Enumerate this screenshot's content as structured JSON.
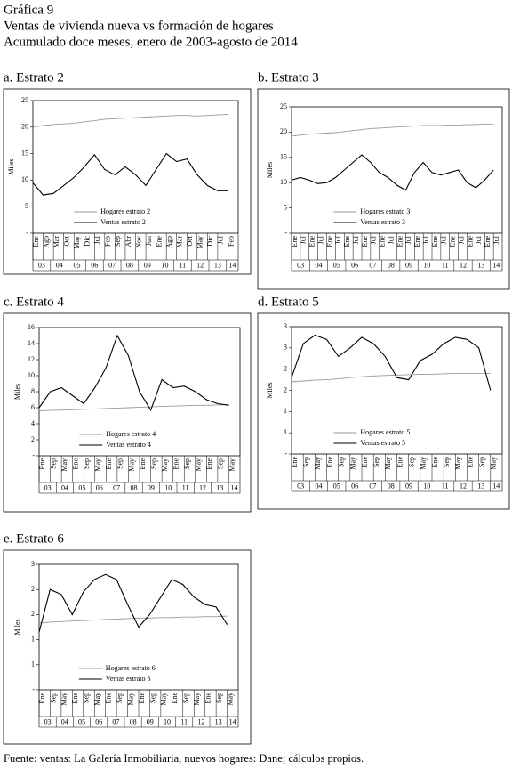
{
  "header": {
    "label": "Gráfica 9",
    "title": "Ventas de vivienda nueva vs formación de hogares",
    "subtitle": "Acumulado doce meses, enero de 2003-agosto de 2014"
  },
  "chart_data": [
    {
      "type": "line",
      "title": "a. Estrato 2",
      "ylabel": "Miles",
      "categories": [
        "Ene",
        "Ago",
        "Mar",
        "Oct",
        "May",
        "Dic",
        "Jul",
        "Feb",
        "Sep",
        "Abr",
        "Nov",
        "Jun",
        "Ene",
        "Ago",
        "Mar",
        "Oct",
        "May",
        "Dic",
        "Jul",
        "Feb"
      ],
      "year_labels": [
        "03",
        "04",
        "05",
        "06",
        "07",
        "08",
        "09",
        "10",
        "11",
        "12",
        "13",
        "14"
      ],
      "ylim": [
        0,
        25
      ],
      "yticks": [
        {
          "value": 0,
          "label": "-"
        },
        5,
        10,
        15,
        20,
        25
      ],
      "legend": "lower center",
      "series": [
        {
          "name": "Hogares estrato 2",
          "color": "#999999",
          "values": [
            20,
            20.3,
            20.5,
            20.6,
            20.7,
            21,
            21.2,
            21.5,
            21.6,
            21.7,
            21.8,
            21.9,
            22,
            22.1,
            22.2,
            22.2,
            22.1,
            22.2,
            22.3,
            22.4
          ]
        },
        {
          "name": "Ventas estrato 2",
          "color": "#000000",
          "values": [
            9.5,
            7.2,
            7.5,
            9,
            10.5,
            12.5,
            14.8,
            12,
            11,
            12.5,
            11,
            9,
            12,
            15,
            13.5,
            14,
            11,
            9,
            8,
            8
          ]
        }
      ]
    },
    {
      "type": "line",
      "title": "b. Estrato 3",
      "ylabel": "Miles",
      "categories": [
        "Ene",
        "Jul",
        "Ene",
        "Jul",
        "Ene",
        "Jul",
        "Ene",
        "Jul",
        "Ene",
        "Jul",
        "Ene",
        "Jul",
        "Ene",
        "Jul",
        "Ene",
        "Jul",
        "Ene",
        "Jul",
        "Ene",
        "Jul",
        "Ene",
        "Jul",
        "Ene",
        "Jul"
      ],
      "year_labels": [
        "03",
        "04",
        "05",
        "06",
        "07",
        "08",
        "09",
        "10",
        "11",
        "12",
        "13",
        "14"
      ],
      "ylim": [
        0,
        25
      ],
      "yticks": [
        {
          "value": 0,
          "label": "-"
        },
        5,
        10,
        15,
        20,
        25
      ],
      "legend": "lower center",
      "series": [
        {
          "name": "Hogares estrato 3",
          "color": "#999999",
          "values": [
            19.2,
            19.4,
            19.6,
            19.7,
            19.8,
            19.9,
            20.1,
            20.3,
            20.5,
            20.7,
            20.8,
            20.9,
            21,
            21.1,
            21.2,
            21.3,
            21.3,
            21.3,
            21.4,
            21.4,
            21.5,
            21.5,
            21.6,
            21.6
          ]
        },
        {
          "name": "Ventas estrato 3",
          "color": "#000000",
          "values": [
            10.5,
            11,
            10.5,
            9.8,
            10,
            11,
            12.5,
            14,
            15.5,
            14,
            12,
            11,
            9.5,
            8.5,
            12,
            14,
            12,
            11.5,
            12,
            12.5,
            10,
            9,
            10.5,
            12.5
          ]
        }
      ]
    },
    {
      "type": "line",
      "title": "c. Estrato 4",
      "ylabel": "Miles",
      "categories": [
        "Ene",
        "Sep",
        "May",
        "Ene",
        "Sep",
        "May",
        "Ene",
        "Sep",
        "May",
        "Ene",
        "Sep",
        "May",
        "Ene",
        "Sep",
        "May",
        "Ene",
        "Sep",
        "May"
      ],
      "year_labels": [
        "03",
        "04",
        "05",
        "06",
        "07",
        "08",
        "09",
        "10",
        "11",
        "12",
        "13",
        "14"
      ],
      "ylim": [
        0,
        16
      ],
      "yticks": [
        {
          "value": 0,
          "label": "-"
        },
        2,
        4,
        6,
        8,
        10,
        12,
        14,
        16
      ],
      "legend": "lower center",
      "series": [
        {
          "name": "Hogares estrato 4",
          "color": "#999999",
          "values": [
            5.6,
            5.65,
            5.7,
            5.75,
            5.8,
            5.85,
            5.9,
            5.95,
            6,
            6.05,
            6.1,
            6.15,
            6.2,
            6.25,
            6.3,
            6.3,
            6.35,
            6.4
          ]
        },
        {
          "name": "Ventas estrato 4",
          "color": "#000000",
          "values": [
            6,
            8,
            8.5,
            7.5,
            6.5,
            8.5,
            11,
            15,
            12.5,
            8,
            5.7,
            9.5,
            8.5,
            8.7,
            8,
            7,
            6.5,
            6.3
          ]
        }
      ]
    },
    {
      "type": "line",
      "title": "d. Estrato 5",
      "ylabel": "Miles",
      "categories": [
        "Ene",
        "Sep",
        "May",
        "Ene",
        "Sep",
        "May",
        "Ene",
        "Sep",
        "May",
        "Ene",
        "Sep",
        "May",
        "Ene",
        "Sep",
        "May",
        "Ene",
        "Sep",
        "May"
      ],
      "year_labels": [
        "03",
        "04",
        "05",
        "06",
        "07",
        "08",
        "09",
        "10",
        "11",
        "12",
        "13",
        "14"
      ],
      "ylim": [
        0,
        3
      ],
      "yticks": [
        {
          "value": 0,
          "label": "-"
        },
        {
          "value": 0.5,
          "label": "1"
        },
        1,
        {
          "value": 1.5,
          "label": "2"
        },
        2,
        {
          "value": 2.5,
          "label": "3"
        },
        3
      ],
      "legend": "lower center",
      "series": [
        {
          "name": "Hogares estrato 5",
          "color": "#999999",
          "values": [
            1.7,
            1.72,
            1.74,
            1.75,
            1.77,
            1.8,
            1.82,
            1.84,
            1.85,
            1.86,
            1.87,
            1.88,
            1.88,
            1.89,
            1.9,
            1.9,
            1.9,
            1.9
          ]
        },
        {
          "name": "Ventas estrato 5",
          "color": "#000000",
          "values": [
            1.8,
            2.6,
            2.8,
            2.7,
            2.3,
            2.5,
            2.75,
            2.6,
            2.3,
            1.8,
            1.75,
            2.2,
            2.35,
            2.6,
            2.75,
            2.7,
            2.5,
            1.5
          ]
        }
      ]
    },
    {
      "type": "line",
      "title": "e. Estrato 6",
      "ylabel": "Miles",
      "categories": [
        "Ene",
        "Sep",
        "May",
        "Ene",
        "Sep",
        "May",
        "Ene",
        "Sep",
        "May",
        "Ene",
        "Sep",
        "May",
        "Ene",
        "Sep",
        "May",
        "Ene",
        "Sep",
        "May"
      ],
      "year_labels": [
        "03",
        "04",
        "05",
        "06",
        "07",
        "08",
        "09",
        "10",
        "11",
        "12",
        "13",
        "14"
      ],
      "ylim": [
        0,
        2.5
      ],
      "yticks": [
        {
          "value": 0,
          "label": "-"
        },
        {
          "value": 0.5,
          "label": "1"
        },
        1,
        {
          "value": 1.5,
          "label": "2"
        },
        2,
        {
          "value": 2.5,
          "label": "3"
        }
      ],
      "legend": "lower center",
      "series": [
        {
          "name": "Hogares estrato 6",
          "color": "#999999",
          "values": [
            1.33,
            1.35,
            1.36,
            1.37,
            1.38,
            1.39,
            1.4,
            1.41,
            1.42,
            1.43,
            1.43,
            1.44,
            1.44,
            1.45,
            1.45,
            1.46,
            1.46,
            1.47
          ]
        },
        {
          "name": "Ventas estrato 6",
          "color": "#000000",
          "values": [
            1.15,
            2,
            1.9,
            1.5,
            1.95,
            2.2,
            2.3,
            2.2,
            1.7,
            1.25,
            1.5,
            1.85,
            2.2,
            2.1,
            1.85,
            1.7,
            1.65,
            1.3
          ]
        }
      ]
    }
  ],
  "footer": "Fuente: ventas: La Galería Inmobiliaria, nuevos hogares: Dane; cálculos propios."
}
